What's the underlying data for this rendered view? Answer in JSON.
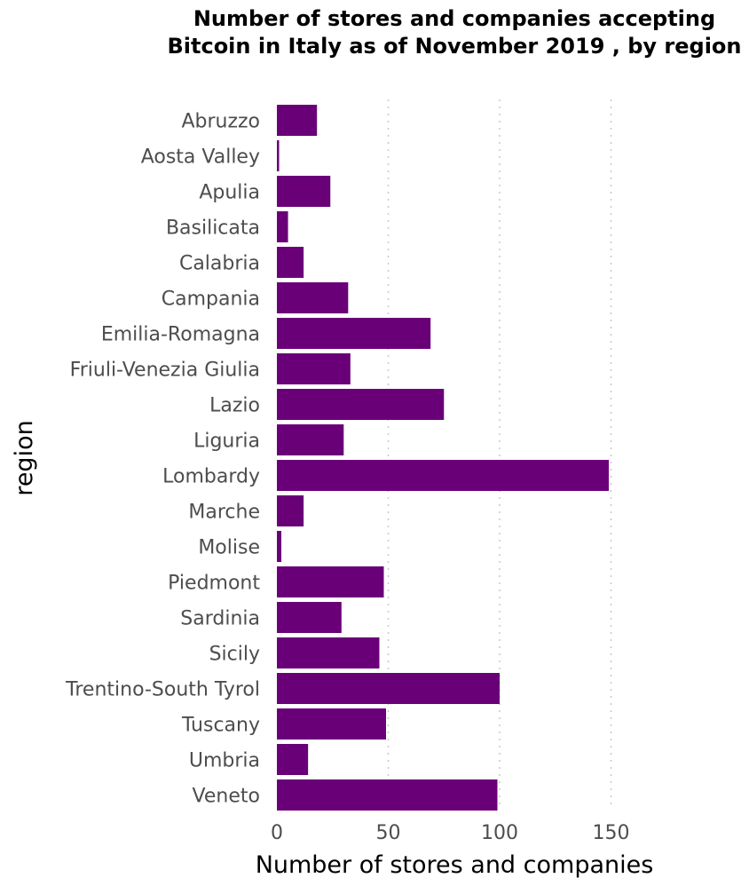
{
  "chart_data": {
    "type": "bar",
    "orientation": "horizontal",
    "title": "Number of stores and companies accepting Bitcoin in Italy as of November 2019 , by region",
    "xlabel": "Number of stores and companies",
    "ylabel": "region",
    "categories": [
      "Abruzzo",
      "Aosta Valley",
      "Apulia",
      "Basilicata",
      "Calabria",
      "Campania",
      "Emilia-Romagna",
      "Friuli-Venezia Giulia",
      "Lazio",
      "Liguria",
      "Lombardy",
      "Marche",
      "Molise",
      "Piedmont",
      "Sardinia",
      "Sicily",
      "Trentino-South Tyrol",
      "Tuscany",
      "Umbria",
      "Veneto"
    ],
    "values": [
      18,
      1,
      24,
      5,
      12,
      32,
      69,
      33,
      75,
      30,
      149,
      12,
      2,
      48,
      29,
      46,
      100,
      49,
      14,
      99
    ],
    "xlim": [
      0,
      150
    ],
    "xticks": [
      0,
      50,
      100,
      150
    ],
    "grid": "vertical-dotted",
    "bar_color": "#6a0078",
    "grid_color": "#c8c8c8"
  }
}
